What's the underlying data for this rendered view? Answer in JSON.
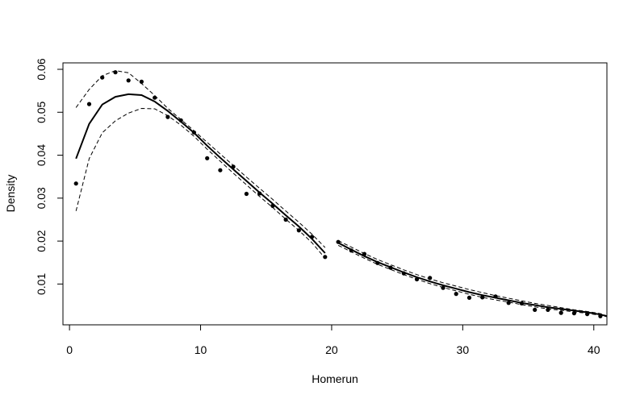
{
  "chart_data": {
    "type": "scatter",
    "title": "",
    "xlabel": "Homerun",
    "ylabel": "Density",
    "xlim": [
      -0.5,
      41
    ],
    "ylim": [
      0.0005,
      0.0615
    ],
    "x_ticks": [
      0,
      10,
      20,
      30,
      40
    ],
    "x_tick_labels": [
      "0",
      "10",
      "20",
      "30",
      "40"
    ],
    "y_ticks": [
      0.01,
      0.02,
      0.03,
      0.04,
      0.05,
      0.06
    ],
    "y_tick_labels": [
      "0.01",
      "0.02",
      "0.03",
      "0.04",
      "0.05",
      "0.06"
    ],
    "grid": false,
    "legend": "none",
    "series": [
      {
        "role": "observed points",
        "style": "points",
        "x": [
          0.5,
          1.5,
          2.5,
          3.5,
          4.5,
          5.5,
          6.5,
          7.5,
          8.5,
          9.5,
          10.5,
          11.5,
          12.5,
          13.5,
          14.5,
          15.5,
          16.5,
          17.5,
          18.5,
          19.5,
          20.5,
          21.5,
          22.5,
          23.5,
          24.5,
          25.5,
          26.5,
          27.5,
          28.5,
          29.5,
          30.5,
          31.5,
          32.5,
          33.5,
          34.5,
          35.5,
          36.5,
          37.5,
          38.5,
          39.5,
          40.5
        ],
        "values": [
          0.0334,
          0.0519,
          0.0581,
          0.0593,
          0.0574,
          0.0571,
          0.0534,
          0.0489,
          0.0481,
          0.0453,
          0.0393,
          0.0365,
          0.0373,
          0.031,
          0.0311,
          0.0282,
          0.025,
          0.0225,
          0.021,
          0.0163,
          0.0198,
          0.0178,
          0.017,
          0.0149,
          0.0138,
          0.0125,
          0.0111,
          0.0114,
          0.0091,
          0.0077,
          0.0068,
          0.0069,
          0.0071,
          0.0056,
          0.0055,
          0.004,
          0.004,
          0.0033,
          0.0032,
          0.003,
          0.0025
        ]
      },
      {
        "role": "fit segment 1",
        "style": "solid",
        "x": [
          0.5,
          1.5,
          2.5,
          3.5,
          4.5,
          5.5,
          6.5,
          7.5,
          8.5,
          9.5,
          10.5,
          11.5,
          12.5,
          13.5,
          14.5,
          15.5,
          16.5,
          17.5,
          18.5,
          19.5
        ],
        "values": [
          0.0392,
          0.0473,
          0.0518,
          0.0536,
          0.0542,
          0.054,
          0.0525,
          0.0503,
          0.0478,
          0.0452,
          0.0422,
          0.0394,
          0.0367,
          0.034,
          0.0313,
          0.0287,
          0.026,
          0.0234,
          0.0205,
          0.0172
        ]
      },
      {
        "role": "upper band segment 1",
        "style": "dashed",
        "x": [
          0.5,
          1.5,
          2.5,
          3.5,
          4.5,
          5.5,
          6.5,
          7.5,
          8.5,
          9.5,
          10.5,
          11.5,
          12.5,
          13.5,
          14.5,
          15.5,
          16.5,
          17.5,
          18.5,
          19.5
        ],
        "values": [
          0.0511,
          0.0553,
          0.0585,
          0.0597,
          0.0592,
          0.0567,
          0.0539,
          0.0509,
          0.0483,
          0.0457,
          0.043,
          0.0403,
          0.0376,
          0.0349,
          0.0323,
          0.0297,
          0.027,
          0.0244,
          0.0216,
          0.0185
        ]
      },
      {
        "role": "lower band segment 1",
        "style": "dashed",
        "x": [
          0.5,
          1.5,
          2.5,
          3.5,
          4.5,
          5.5,
          6.5,
          7.5,
          8.5,
          9.5,
          10.5,
          11.5,
          12.5,
          13.5,
          14.5,
          15.5,
          16.5,
          17.5,
          18.5,
          19.5
        ],
        "values": [
          0.027,
          0.0392,
          0.0452,
          0.048,
          0.0498,
          0.0509,
          0.0508,
          0.0492,
          0.047,
          0.0444,
          0.0414,
          0.0386,
          0.0358,
          0.0331,
          0.0304,
          0.0278,
          0.0251,
          0.0225,
          0.0196,
          0.016
        ]
      },
      {
        "role": "fit segment 2",
        "style": "solid",
        "x": [
          20.5,
          21.5,
          22.5,
          23.5,
          24.5,
          25.5,
          26.5,
          27.5,
          28.5,
          29.5,
          30.5,
          31.5,
          32.5,
          33.5,
          34.5,
          35.5,
          36.5,
          37.5,
          38.5,
          39.5,
          40.5,
          41.0
        ],
        "values": [
          0.0196,
          0.018,
          0.0165,
          0.0151,
          0.0139,
          0.0127,
          0.0116,
          0.0106,
          0.0097,
          0.0089,
          0.0081,
          0.0074,
          0.0068,
          0.0062,
          0.0056,
          0.0051,
          0.0046,
          0.0042,
          0.0038,
          0.0034,
          0.0029,
          0.0025
        ]
      },
      {
        "role": "upper band segment 2",
        "style": "dashed",
        "x": [
          20.5,
          21.5,
          22.5,
          23.5,
          24.5,
          25.5,
          26.5,
          27.5,
          28.5,
          29.5,
          30.5,
          31.5,
          32.5,
          33.5,
          34.5,
          35.5,
          36.5,
          37.5,
          38.5,
          39.5,
          40.5,
          41.0
        ],
        "values": [
          0.0201,
          0.0186,
          0.0171,
          0.0157,
          0.0145,
          0.0133,
          0.0122,
          0.0112,
          0.0103,
          0.0095,
          0.0087,
          0.008,
          0.0073,
          0.0067,
          0.0061,
          0.0055,
          0.005,
          0.0045,
          0.004,
          0.0036,
          0.0031,
          0.0026
        ]
      },
      {
        "role": "lower band segment 2",
        "style": "dashed",
        "x": [
          20.5,
          21.5,
          22.5,
          23.5,
          24.5,
          25.5,
          26.5,
          27.5,
          28.5,
          29.5,
          30.5,
          31.5,
          32.5,
          33.5,
          34.5,
          35.5,
          36.5,
          37.5,
          38.5,
          39.5,
          40.5,
          41.0
        ],
        "values": [
          0.019,
          0.0175,
          0.016,
          0.0146,
          0.0134,
          0.0122,
          0.0111,
          0.0101,
          0.0092,
          0.0084,
          0.0076,
          0.0069,
          0.0063,
          0.0058,
          0.0052,
          0.0047,
          0.0042,
          0.0039,
          0.0035,
          0.0032,
          0.0027,
          0.0024
        ]
      }
    ]
  }
}
